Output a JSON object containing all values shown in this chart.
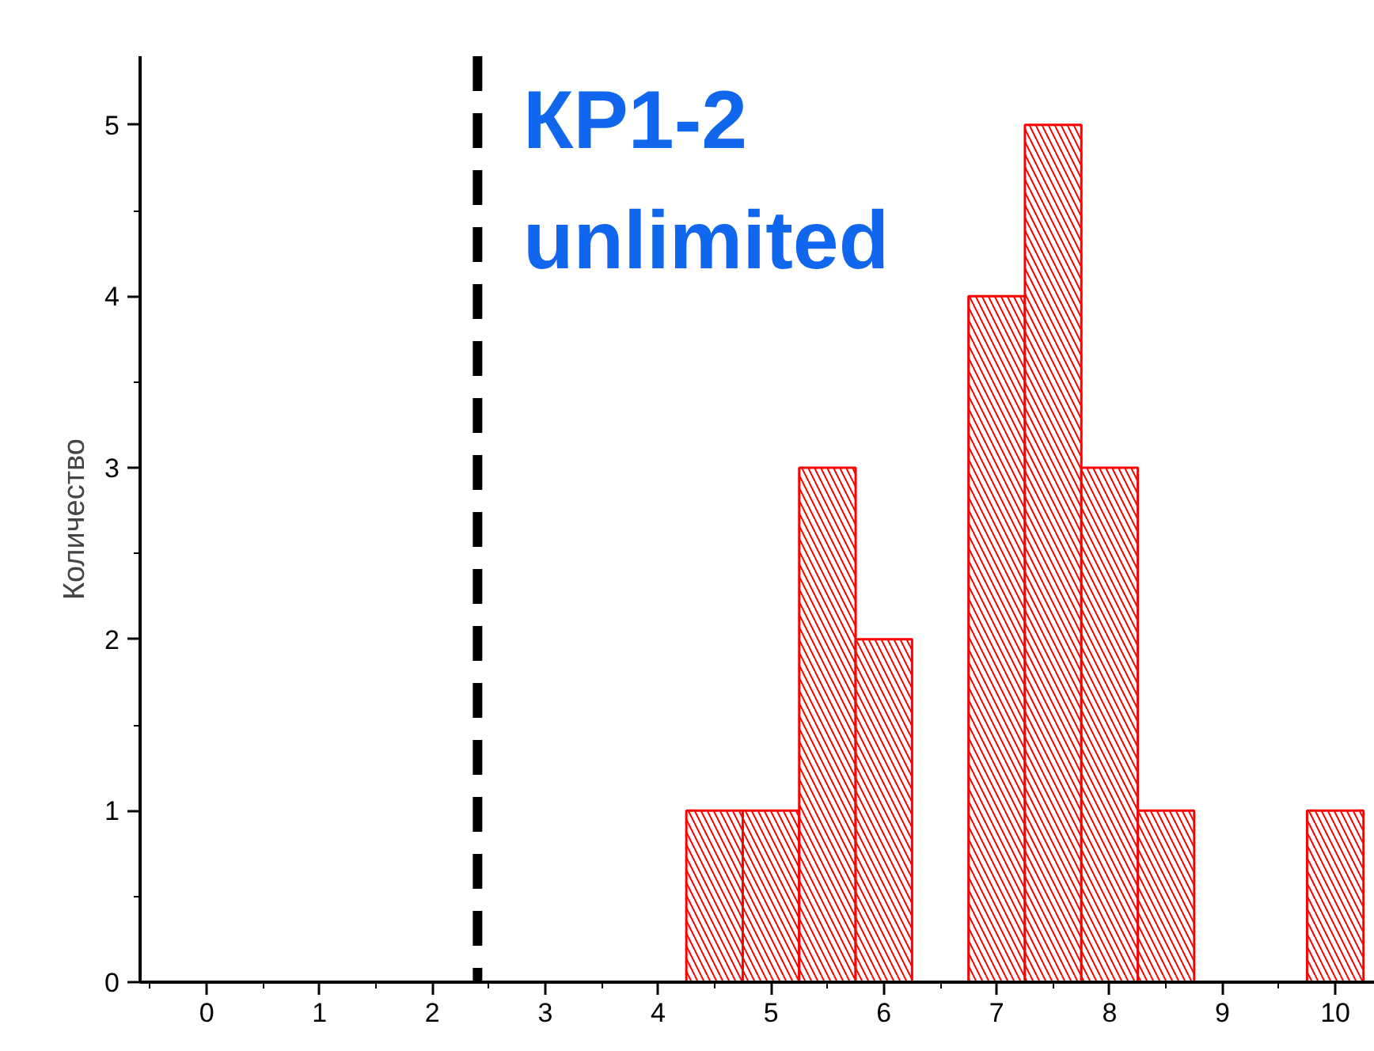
{
  "chart_data": {
    "type": "histogram",
    "ylabel": "Количество",
    "bins": [
      4.25,
      4.75,
      5.25,
      5.75,
      6.25,
      6.75,
      7.25,
      7.75,
      8.25,
      8.75,
      9.25,
      9.75,
      10.25
    ],
    "values": [
      1,
      1,
      3,
      2,
      0,
      4,
      5,
      3,
      1,
      0,
      0,
      1
    ],
    "color": "#ff0000",
    "xlim": [
      -0.59,
      10.35
    ],
    "xticks": [
      0,
      1,
      2,
      3,
      4,
      5,
      6,
      7,
      8,
      9,
      10
    ],
    "ylim": [
      0,
      5.4
    ],
    "yticks": [
      0,
      1,
      2,
      3,
      4,
      5
    ],
    "grid": false,
    "ref_lines": [
      {
        "axis": "x",
        "value": 2.4,
        "color": "#000000",
        "line_style": "dashed"
      }
    ],
    "annotations": [
      "КР1-2",
      "unlimited"
    ]
  }
}
